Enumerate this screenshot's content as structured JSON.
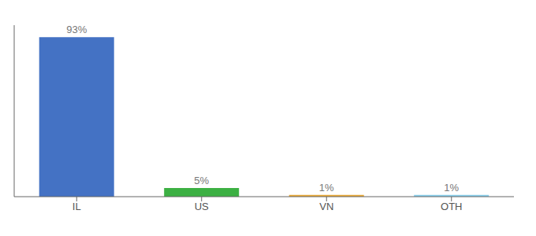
{
  "chart_data": {
    "type": "bar",
    "categories": [
      "IL",
      "US",
      "VN",
      "OTH"
    ],
    "values": [
      93,
      5,
      1,
      1
    ],
    "value_labels": [
      "93%",
      "5%",
      "1%",
      "1%"
    ],
    "colors": [
      "#4472c4",
      "#3cb043",
      "#e8a838",
      "#87ceeb"
    ],
    "ylim": [
      0,
      100
    ],
    "data_labels": true,
    "tick_labels": "x",
    "grid": false
  }
}
